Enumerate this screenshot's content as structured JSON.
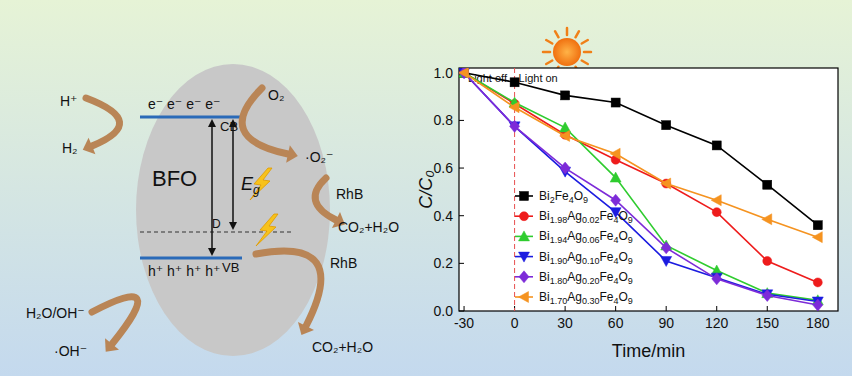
{
  "diagram": {
    "title": "BFO",
    "cb": "CB",
    "vb": "VB",
    "defect": "D",
    "gap": {
      "main": "E",
      "sub": "g"
    },
    "electrons": "e⁻ e⁻ e⁻ e⁻",
    "holes": "h⁺ h⁺ h⁺ h⁺",
    "reactions": [
      "H⁺",
      "H₂",
      "O₂",
      "·O₂⁻",
      "RhB",
      "CO₂+H₂O",
      "H₂O/OH⁻",
      "·OH⁻",
      "RhB",
      "CO₂+H₂O"
    ]
  },
  "chart_data": {
    "type": "line",
    "x_label": "Time/min",
    "y_label": "C/C₀",
    "x": [
      -30,
      0,
      30,
      60,
      90,
      120,
      150,
      180
    ],
    "xlim": [
      -33,
      192
    ],
    "xticks": [
      -30,
      0,
      30,
      60,
      90,
      120,
      150,
      180
    ],
    "ylim": [
      0,
      1.02
    ],
    "yticks": [
      {
        "value": 0,
        "label": "0.0"
      },
      0.2,
      0.4,
      0.6,
      0.8,
      {
        "value": 1,
        "label": "1.0"
      }
    ],
    "grid": false,
    "legend": "lower left",
    "annotations": [
      {
        "text": "Light off",
        "x": -30
      },
      {
        "text": "Light on",
        "x": 0
      }
    ],
    "light_line": 0,
    "series": [
      {
        "name": "Bi2Fe4O9",
        "color": "#000000",
        "marker": "square",
        "values": [
          1.0,
          0.96,
          0.905,
          0.875,
          0.78,
          0.695,
          0.53,
          0.36
        ]
      },
      {
        "name": "Bi1.98Ag0.02Fe4O9",
        "color": "#ee1c1c",
        "marker": "circle",
        "values": [
          1.0,
          0.87,
          0.74,
          0.635,
          0.535,
          0.415,
          0.21,
          0.12
        ]
      },
      {
        "name": "Bi1.94Ag0.06Fe4O9",
        "color": "#2fcc2f",
        "marker": "triangle-up",
        "values": [
          1.0,
          0.875,
          0.77,
          0.56,
          0.275,
          0.17,
          0.075,
          0.045
        ]
      },
      {
        "name": "Bi1.90Ag0.10Fe4O9",
        "color": "#1c1ce0",
        "marker": "triangle-down",
        "values": [
          1.0,
          0.775,
          0.585,
          0.415,
          0.21,
          0.14,
          0.07,
          0.04
        ]
      },
      {
        "name": "Bi1.80Ag0.20Fe4O9",
        "color": "#7d2bd8",
        "marker": "diamond",
        "values": [
          1.0,
          0.775,
          0.6,
          0.465,
          0.265,
          0.135,
          0.065,
          0.025
        ]
      },
      {
        "name": "Bi1.70Ag0.30Fe4O9",
        "color": "#f59320",
        "marker": "triangle-left",
        "values": [
          1.0,
          0.855,
          0.735,
          0.66,
          0.535,
          0.465,
          0.385,
          0.31
        ]
      }
    ]
  }
}
